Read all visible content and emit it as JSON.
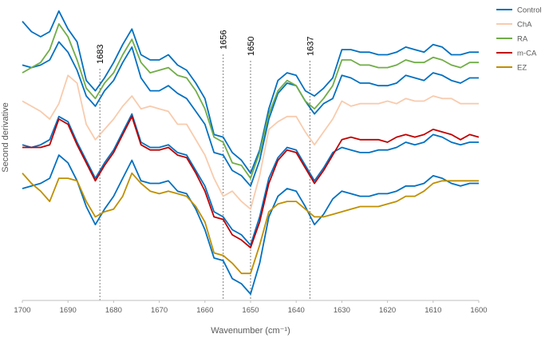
{
  "chart_data": {
    "type": "line",
    "xlabel": "Wavenumber (cm⁻¹)",
    "ylabel": "Second derivative",
    "xlim": [
      1700,
      1600
    ],
    "xticks": [
      1700,
      1690,
      1680,
      1670,
      1660,
      1650,
      1640,
      1630,
      1620,
      1610,
      1600
    ],
    "xtick_labels": [
      "1700",
      "1690",
      "1680",
      "1670",
      "1660",
      "1650",
      "1640",
      "1630",
      "1620",
      "1610",
      "1600"
    ],
    "ylim": [
      0,
      100
    ],
    "y_tick_labels_shown": false,
    "grid": false,
    "legend_position": "right",
    "annotations": [
      {
        "x": 1683,
        "label": "1683"
      },
      {
        "x": 1656,
        "label": "1656"
      },
      {
        "x": 1650,
        "label": "1650"
      },
      {
        "x": 1637,
        "label": "1637"
      }
    ],
    "series": [
      {
        "name": "Control",
        "color": "#0070C0",
        "x": [
          1700,
          1698,
          1696,
          1694,
          1692,
          1690,
          1688,
          1686,
          1684,
          1682,
          1680,
          1678,
          1676,
          1674,
          1672,
          1670,
          1668,
          1666,
          1664,
          1662,
          1660,
          1658,
          1656,
          1654,
          1652,
          1650,
          1648,
          1646,
          1644,
          1642,
          1640,
          1638,
          1636,
          1634,
          1632,
          1630,
          1628,
          1626,
          1624,
          1622,
          1620,
          1618,
          1616,
          1614,
          1612,
          1610,
          1608,
          1606,
          1604,
          1602,
          1600
        ],
        "y": [
          89,
          88,
          89,
          91,
          98,
          94,
          87,
          77,
          73,
          79,
          83,
          90,
          96,
          84,
          79,
          79,
          81,
          78,
          76,
          71,
          66,
          55,
          54,
          48,
          46,
          42,
          52,
          68,
          78,
          82,
          81,
          75,
          70,
          74,
          76,
          85,
          84,
          82,
          82,
          81,
          81,
          82,
          85,
          84,
          83,
          86,
          85,
          83,
          82,
          84,
          84
        ]
      },
      {
        "name": "ChA",
        "color": "#F8CBAD",
        "x": [
          1700,
          1698,
          1696,
          1694,
          1692,
          1690,
          1688,
          1686,
          1684,
          1682,
          1680,
          1678,
          1676,
          1674,
          1672,
          1670,
          1668,
          1666,
          1664,
          1662,
          1660,
          1658,
          1656,
          1654,
          1652,
          1650,
          1648,
          1646,
          1644,
          1642,
          1640,
          1638,
          1636,
          1634,
          1632,
          1630,
          1628,
          1626,
          1624,
          1622,
          1620,
          1618,
          1616,
          1614,
          1612,
          1610,
          1608,
          1606,
          1604,
          1602,
          1600
        ],
        "y": [
          75,
          73,
          71,
          68,
          74,
          85,
          82,
          66,
          60,
          64,
          68,
          73,
          77,
          72,
          73,
          72,
          71,
          66,
          66,
          60,
          54,
          45,
          38,
          40,
          36,
          33,
          46,
          64,
          67,
          69,
          69,
          63,
          58,
          63,
          68,
          75,
          73,
          74,
          74,
          74,
          75,
          74,
          76,
          75,
          75,
          77,
          76,
          76,
          74,
          74,
          74
        ]
      },
      {
        "name": "RA",
        "color": "#70AD47",
        "x": [
          1700,
          1698,
          1696,
          1694,
          1692,
          1690,
          1688,
          1686,
          1684,
          1682,
          1680,
          1678,
          1676,
          1674,
          1672,
          1670,
          1668,
          1666,
          1664,
          1662,
          1660,
          1658,
          1656,
          1654,
          1652,
          1650,
          1648,
          1646,
          1644,
          1642,
          1640,
          1638,
          1636,
          1634,
          1632,
          1630,
          1628,
          1626,
          1624,
          1622,
          1620,
          1618,
          1616,
          1614,
          1612,
          1610,
          1608,
          1606,
          1604,
          1602,
          1600
        ],
        "y": [
          86,
          88,
          90,
          95,
          105,
          100,
          91,
          80,
          76,
          82,
          86,
          93,
          99,
          90,
          86,
          87,
          88,
          85,
          84,
          79,
          72,
          61,
          59,
          51,
          50,
          45,
          55,
          70,
          79,
          83,
          81,
          75,
          72,
          76,
          81,
          91,
          91,
          89,
          89,
          88,
          88,
          89,
          91,
          90,
          90,
          92,
          91,
          89,
          88,
          90,
          90
        ]
      },
      {
        "name": "m-CA",
        "color": "#C00000",
        "x": [
          1700,
          1698,
          1696,
          1694,
          1692,
          1690,
          1688,
          1686,
          1684,
          1682,
          1680,
          1678,
          1676,
          1674,
          1672,
          1670,
          1668,
          1666,
          1664,
          1662,
          1660,
          1658,
          1656,
          1654,
          1652,
          1650,
          1648,
          1646,
          1644,
          1642,
          1640,
          1638,
          1636,
          1634,
          1632,
          1630,
          1628,
          1626,
          1624,
          1622,
          1620,
          1618,
          1616,
          1614,
          1612,
          1610,
          1608,
          1606,
          1604,
          1602,
          1600
        ],
        "y": [
          57,
          57,
          57,
          58,
          68,
          66,
          58,
          51,
          44,
          50,
          55,
          62,
          69,
          58,
          56,
          56,
          57,
          54,
          53,
          47,
          40,
          30,
          29,
          23,
          21,
          18,
          28,
          43,
          52,
          56,
          55,
          49,
          43,
          48,
          54,
          60,
          61,
          60,
          60,
          60,
          59,
          61,
          62,
          61,
          62,
          64,
          63,
          62,
          60,
          62,
          61
        ]
      },
      {
        "name": "EZ",
        "color": "#BF8F00",
        "x": [
          1700,
          1698,
          1696,
          1694,
          1692,
          1690,
          1688,
          1686,
          1684,
          1682,
          1680,
          1678,
          1676,
          1674,
          1672,
          1670,
          1668,
          1666,
          1664,
          1662,
          1660,
          1658,
          1656,
          1654,
          1652,
          1650,
          1648,
          1646,
          1644,
          1642,
          1640,
          1638,
          1636,
          1634,
          1632,
          1630,
          1628,
          1626,
          1624,
          1622,
          1620,
          1618,
          1616,
          1614,
          1612,
          1610,
          1608,
          1606,
          1604,
          1602,
          1600
        ],
        "y": [
          47,
          43,
          40,
          36,
          45,
          45,
          44,
          36,
          30,
          32,
          33,
          38,
          47,
          43,
          40,
          39,
          40,
          39,
          38,
          34,
          28,
          16,
          15,
          12,
          8,
          8,
          19,
          32,
          35,
          36,
          36,
          33,
          30,
          30,
          31,
          32,
          33,
          34,
          34,
          34,
          35,
          36,
          38,
          38,
          40,
          43,
          44,
          44,
          44,
          44,
          44
        ]
      },
      {
        "name": "",
        "color": "#0070C0",
        "x": [
          1700,
          1698,
          1696,
          1694,
          1692,
          1690,
          1688,
          1686,
          1684,
          1682,
          1680,
          1678,
          1676,
          1674,
          1672,
          1670,
          1668,
          1666,
          1664,
          1662,
          1660,
          1658,
          1656,
          1654,
          1652,
          1650,
          1648,
          1646,
          1644,
          1642,
          1640,
          1638,
          1636,
          1634,
          1632,
          1630,
          1628,
          1626,
          1624,
          1622,
          1620,
          1618,
          1616,
          1614,
          1612,
          1610,
          1608,
          1606,
          1604,
          1602,
          1600
        ],
        "y": [
          106,
          102,
          100,
          102,
          110,
          103,
          98,
          83,
          79,
          84,
          90,
          97,
          103,
          93,
          91,
          91,
          93,
          89,
          87,
          82,
          76,
          62,
          61,
          55,
          52,
          47,
          56,
          72,
          83,
          86,
          85,
          79,
          77,
          80,
          84,
          95,
          95,
          94,
          94,
          93,
          93,
          94,
          96,
          95,
          94,
          97,
          96,
          93,
          93,
          94,
          94
        ]
      },
      {
        "name": "",
        "color": "#0070C0",
        "x": [
          1700,
          1698,
          1696,
          1694,
          1692,
          1690,
          1688,
          1686,
          1684,
          1682,
          1680,
          1678,
          1676,
          1674,
          1672,
          1670,
          1668,
          1666,
          1664,
          1662,
          1660,
          1658,
          1656,
          1654,
          1652,
          1650,
          1648,
          1646,
          1644,
          1642,
          1640,
          1638,
          1636,
          1634,
          1632,
          1630,
          1628,
          1626,
          1624,
          1622,
          1620,
          1618,
          1616,
          1614,
          1612,
          1610,
          1608,
          1606,
          1604,
          1602,
          1600
        ],
        "y": [
          58,
          57,
          58,
          60,
          69,
          67,
          59,
          52,
          45,
          51,
          56,
          63,
          70,
          59,
          57,
          57,
          58,
          55,
          54,
          48,
          42,
          32,
          30,
          25,
          23,
          19,
          30,
          45,
          53,
          57,
          56,
          50,
          44,
          49,
          55,
          57,
          56,
          55,
          55,
          56,
          56,
          57,
          59,
          58,
          59,
          62,
          61,
          59,
          58,
          59,
          59
        ]
      },
      {
        "name": "",
        "color": "#0070C0",
        "x": [
          1700,
          1698,
          1696,
          1694,
          1692,
          1690,
          1688,
          1686,
          1684,
          1682,
          1680,
          1678,
          1676,
          1674,
          1672,
          1670,
          1668,
          1666,
          1664,
          1662,
          1660,
          1658,
          1656,
          1654,
          1652,
          1650,
          1648,
          1646,
          1644,
          1642,
          1640,
          1638,
          1636,
          1634,
          1632,
          1630,
          1628,
          1626,
          1624,
          1622,
          1620,
          1618,
          1616,
          1614,
          1612,
          1610,
          1608,
          1606,
          1604,
          1602,
          1600
        ],
        "y": [
          41,
          42,
          43,
          45,
          54,
          51,
          44,
          34,
          27,
          33,
          38,
          45,
          52,
          44,
          43,
          43,
          44,
          40,
          39,
          33,
          25,
          14,
          13,
          6,
          4,
          0,
          12,
          30,
          38,
          41,
          40,
          34,
          27,
          31,
          37,
          40,
          39,
          38,
          38,
          39,
          39,
          40,
          42,
          42,
          43,
          46,
          45,
          43,
          42,
          43,
          43
        ]
      }
    ]
  }
}
